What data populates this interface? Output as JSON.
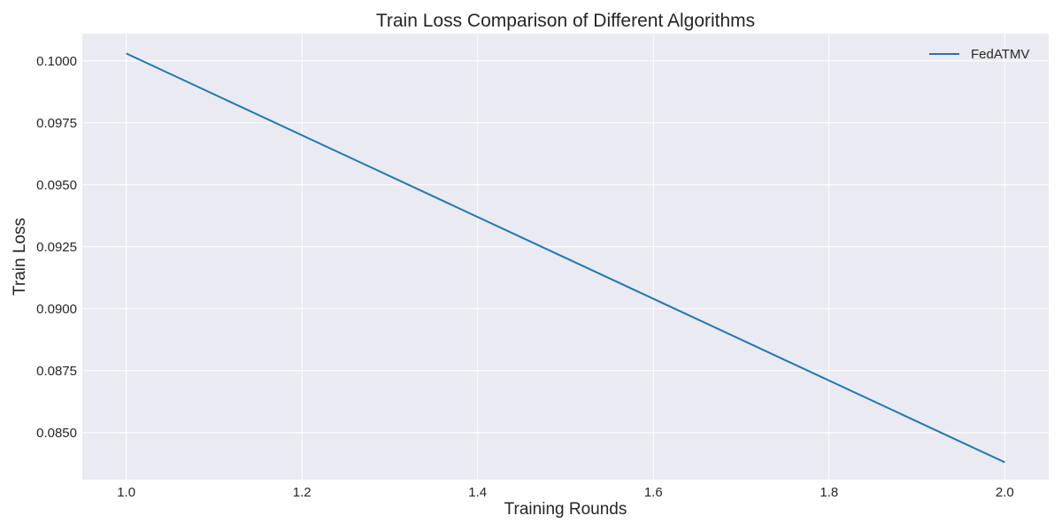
{
  "chart_data": {
    "type": "line",
    "title": "Train Loss Comparison of Different Algorithms",
    "xlabel": "Training Rounds",
    "ylabel": "Train Loss",
    "xlim": [
      0.95,
      2.05
    ],
    "ylim": [
      0.0831,
      0.1011
    ],
    "xticks": [
      1.0,
      1.2,
      1.4,
      1.6,
      1.8,
      2.0
    ],
    "xtick_labels": [
      "1.0",
      "1.2",
      "1.4",
      "1.6",
      "1.8",
      "2.0"
    ],
    "yticks": [
      0.085,
      0.0875,
      0.09,
      0.0925,
      0.095,
      0.0975,
      0.1
    ],
    "ytick_labels": [
      "0.0850",
      "0.0875",
      "0.0900",
      "0.0925",
      "0.0950",
      "0.0975",
      "0.1000"
    ],
    "grid": true,
    "legend_position": "top-right",
    "series": [
      {
        "name": "FedATMV",
        "color": "#1f77b4",
        "x": [
          1,
          2
        ],
        "y": [
          0.1003,
          0.0838
        ]
      }
    ]
  },
  "colors": {
    "plot_background": "#eaeaf2",
    "grid": "#ffffff",
    "text": "#262626"
  }
}
